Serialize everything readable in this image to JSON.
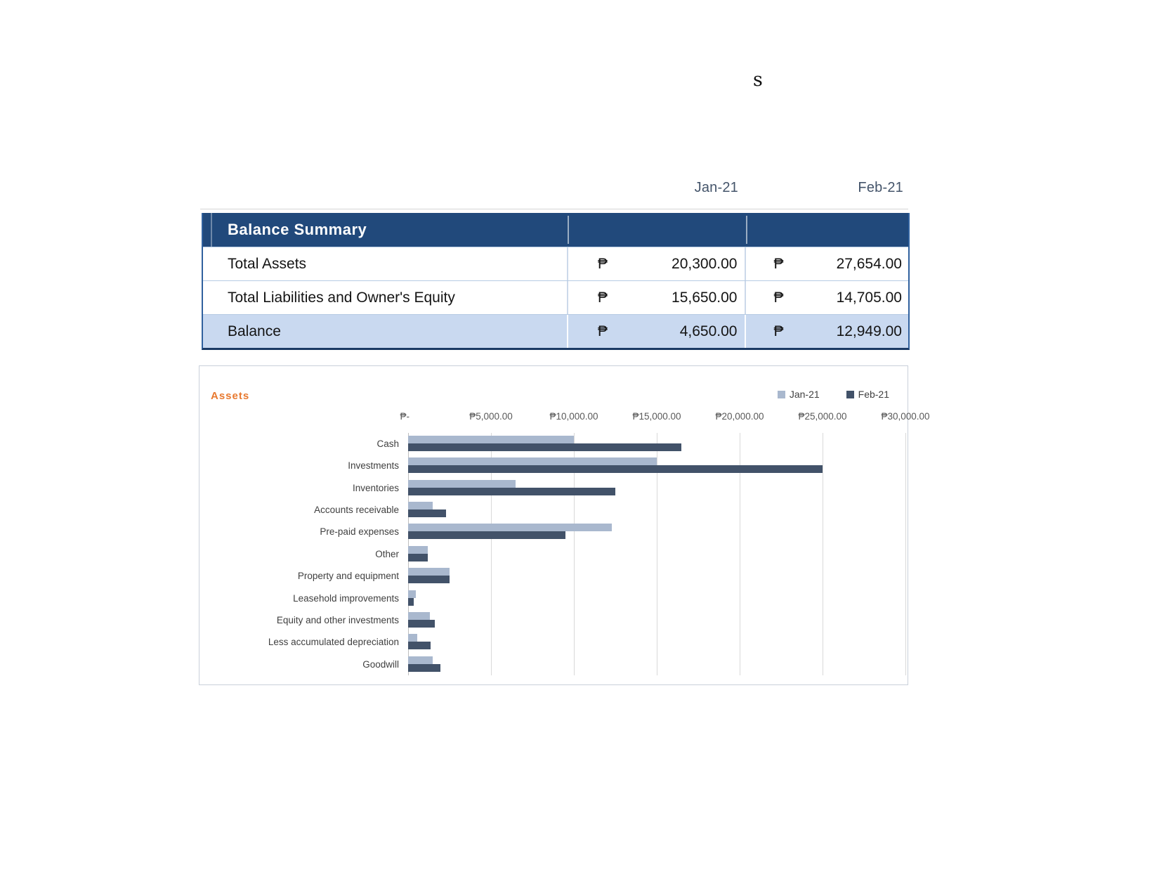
{
  "stray_text": "s",
  "period_headers": {
    "jan": "Jan-21",
    "feb": "Feb-21"
  },
  "summary_table": {
    "title": "Balance Summary",
    "currency_symbol": "₱",
    "rows": [
      {
        "label": "Total Assets",
        "jan": "20,300.00",
        "feb": "27,654.00",
        "highlight": false
      },
      {
        "label": "Total Liabilities and Owner's Equity",
        "jan": "15,650.00",
        "feb": "14,705.00",
        "highlight": false
      },
      {
        "label": "Balance",
        "jan": "4,650.00",
        "feb": "12,949.00",
        "highlight": true
      }
    ]
  },
  "chart_data": {
    "type": "bar",
    "orientation": "horizontal",
    "title": "Assets",
    "categories": [
      "Cash",
      "Investments",
      "Inventories",
      "Accounts receivable",
      "Pre-paid expenses",
      "Other",
      "Property and equipment",
      "Leasehold improvements",
      "Equity and other investments",
      "Less accumulated depreciation",
      "Goodwill"
    ],
    "series": [
      {
        "name": "Jan-21",
        "color": "#a9b8ce",
        "values": [
          10000,
          15000,
          6500,
          1500,
          12300,
          1200,
          2500,
          475,
          1300,
          550,
          1500
        ]
      },
      {
        "name": "Feb-21",
        "color": "#425269",
        "values": [
          16500,
          25000,
          12500,
          2300,
          9500,
          1200,
          2500,
          350,
          1600,
          1350,
          1950
        ]
      }
    ],
    "x_axis": {
      "min": 0,
      "max": 30000,
      "tick_interval": 5000,
      "tick_labels": [
        "₱-",
        "₱5,000.00",
        "₱10,000.00",
        "₱15,000.00",
        "₱20,000.00",
        "₱25,000.00",
        "₱30,000.00"
      ]
    },
    "legend_position": "top-right",
    "grid": true
  },
  "colors": {
    "table_header": "#21497b",
    "highlight_row": "#c9d9f0",
    "table_border": "#30619e",
    "title_accent": "#e8792f",
    "series_jan": "#a9b8ce",
    "series_feb": "#425269"
  }
}
